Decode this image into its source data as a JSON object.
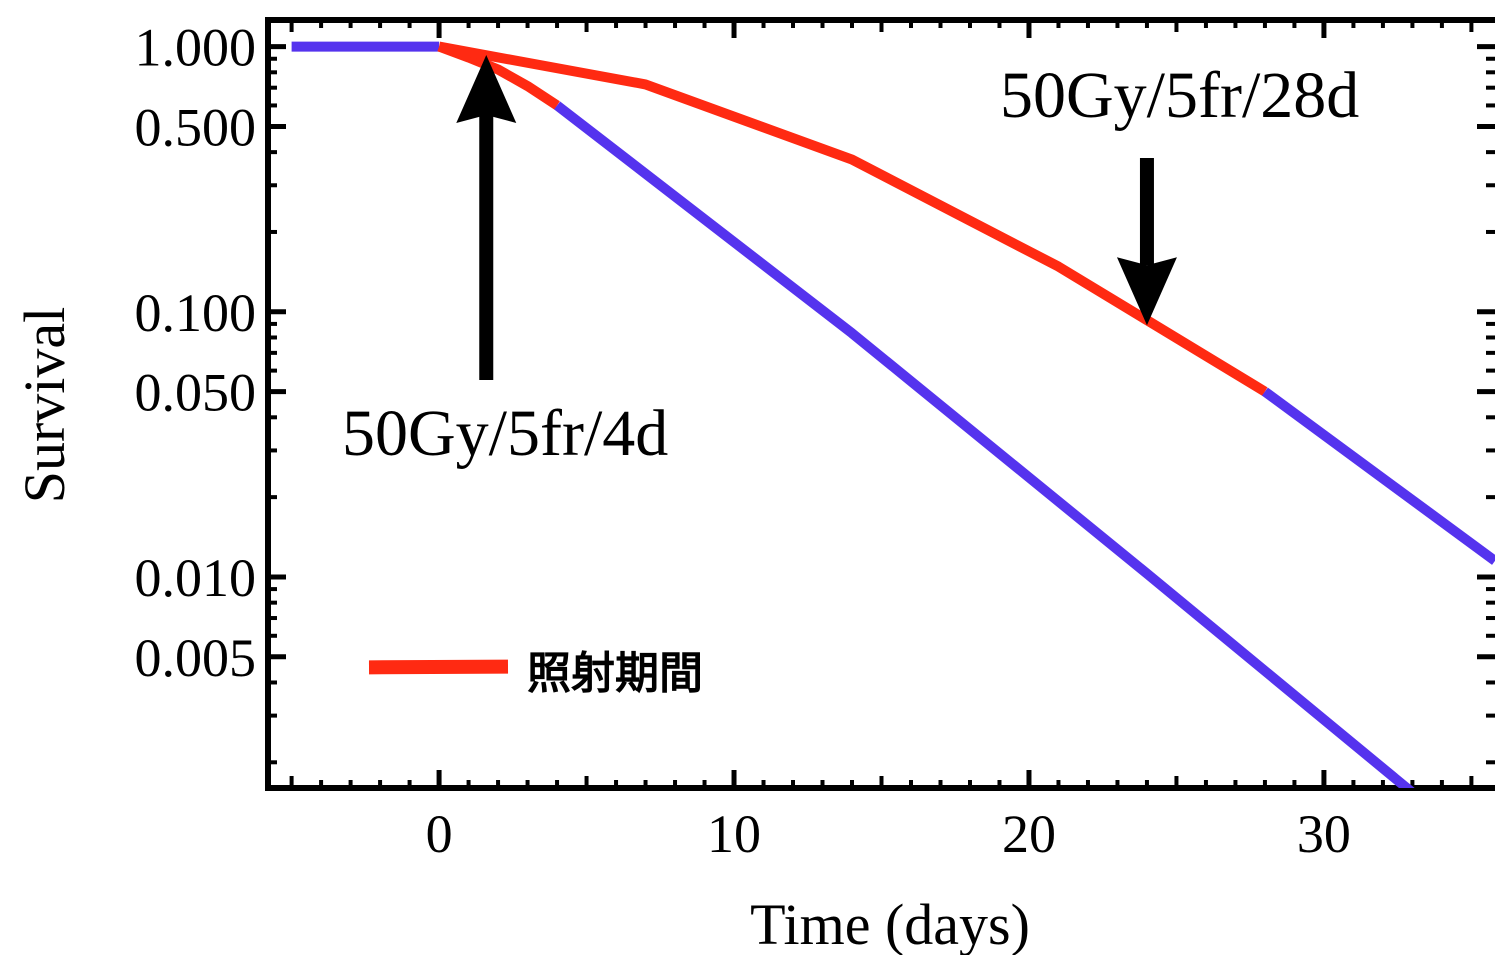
{
  "chart_data": {
    "type": "line",
    "title": "",
    "xlabel": "Time (days)",
    "ylabel": "Survival",
    "xlim": [
      -5.8,
      35.8
    ],
    "ylim": [
      0.0016,
      1.26
    ],
    "y_scale": "log",
    "x_ticks": [
      0,
      10,
      20,
      30
    ],
    "x_tick_labels": [
      "0",
      "10",
      "20",
      "30"
    ],
    "y_ticks": [
      1.0,
      0.5,
      0.1,
      0.05,
      0.01,
      0.005
    ],
    "y_tick_labels": [
      "1.000",
      "0.500",
      "0.100",
      "0.050",
      "0.010",
      "0.005"
    ],
    "grid": false,
    "legend": {
      "placement": "bottom-left",
      "label": "照射期間",
      "color": "#ff2a12"
    },
    "series": [
      {
        "id": "4d",
        "segments": [
          {
            "phase": "before",
            "color": "#5533ee",
            "x": [
              -5,
              0
            ],
            "y": [
              1.0,
              1.0
            ]
          },
          {
            "phase": "irradiation",
            "color": "#ff2a12",
            "x": [
              0,
              1,
              2,
              3,
              4
            ],
            "y": [
              1.0,
              0.91,
              0.82,
              0.71,
              0.6
            ]
          },
          {
            "phase": "after",
            "color": "#5533ee",
            "x": [
              4,
              14,
              24,
              35.8
            ],
            "y": [
              0.6,
              0.083,
              0.0103,
              0.00085
            ]
          }
        ]
      },
      {
        "id": "28d",
        "segments": [
          {
            "phase": "irradiation",
            "color": "#ff2a12",
            "x": [
              0,
              7,
              14,
              21,
              28
            ],
            "y": [
              1.0,
              0.72,
              0.375,
              0.148,
              0.05
            ]
          },
          {
            "phase": "after",
            "color": "#5533ee",
            "x": [
              28,
              35.8
            ],
            "y": [
              0.05,
              0.0115
            ]
          }
        ]
      }
    ],
    "annotations": [
      {
        "text": "50Gy/5fr/4d",
        "arrow": "up",
        "arrow_target_x": 1.6,
        "arrow_target_y": 0.93
      },
      {
        "text": "50Gy/5fr/28d",
        "arrow": "down",
        "arrow_target_x": 24,
        "arrow_target_y": 0.089
      }
    ],
    "annotation_color": "#000000"
  }
}
